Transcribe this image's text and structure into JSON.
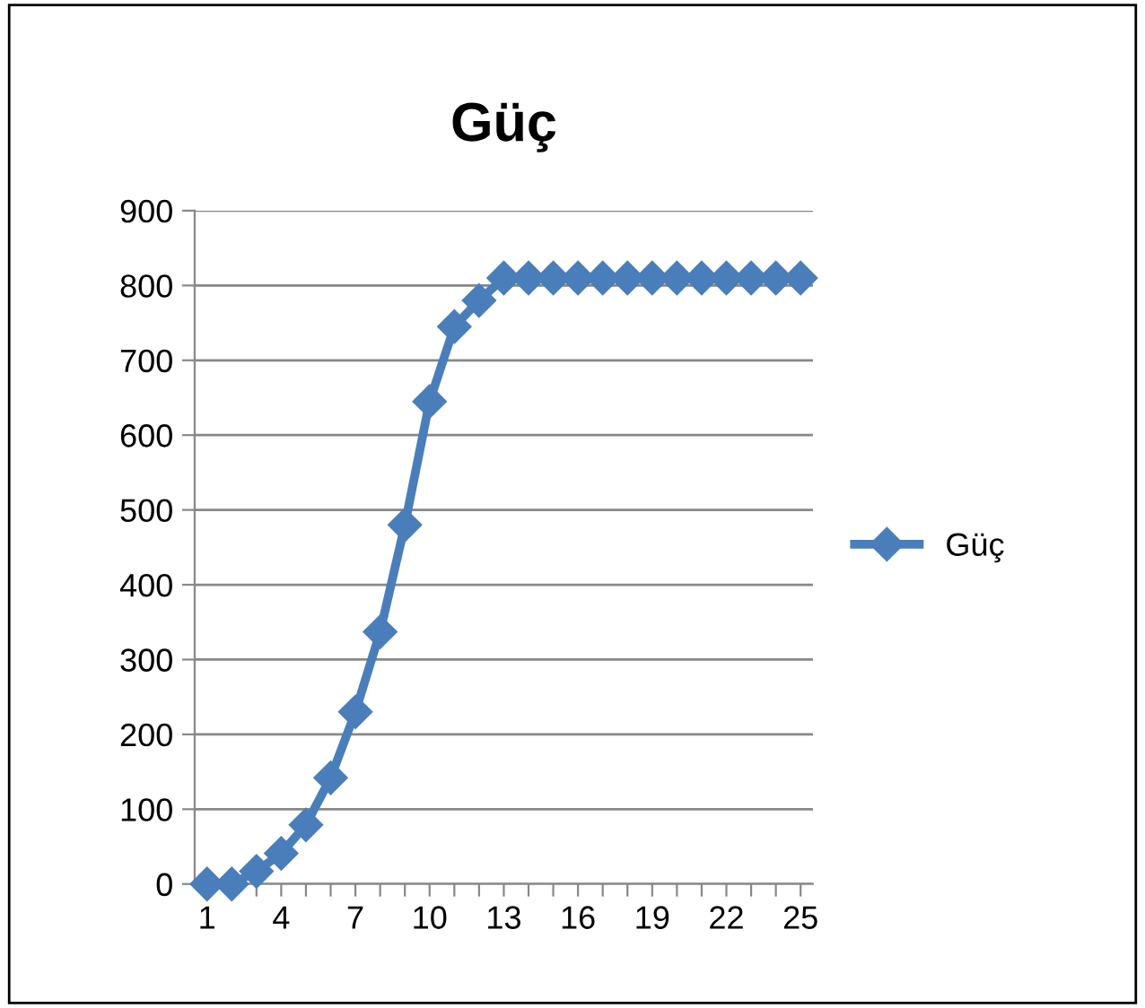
{
  "chart_data": {
    "type": "line",
    "title": "Güç",
    "categories": [
      "1",
      null,
      null,
      "4",
      null,
      null,
      "7",
      null,
      null,
      "10",
      null,
      null,
      "13",
      null,
      null,
      "16",
      null,
      null,
      "19",
      null,
      null,
      "22",
      null,
      null,
      "25"
    ],
    "series": [
      {
        "name": "Güç",
        "color": "#4a7ebb",
        "values": [
          0,
          0,
          17,
          41,
          79,
          142,
          230,
          337,
          480,
          645,
          745,
          780,
          810,
          810,
          810,
          810,
          810,
          810,
          810,
          810,
          810,
          810,
          810,
          810,
          810
        ]
      }
    ],
    "ylim": [
      0,
      900
    ],
    "yticks": [
      0,
      100,
      200,
      300,
      400,
      500,
      600,
      700,
      800,
      900
    ],
    "grid": "y",
    "legend": "right",
    "marker": "diamond",
    "line_style": "solid"
  }
}
